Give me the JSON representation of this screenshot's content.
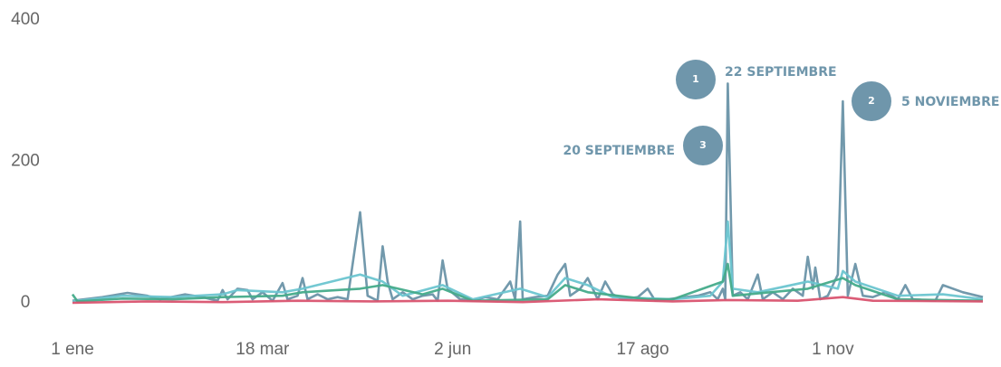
{
  "chart_data": {
    "type": "line",
    "xlim": [
      0,
      364
    ],
    "xticks": [
      {
        "value": 0,
        "label": "1 ene"
      },
      {
        "value": 76,
        "label": "18 mar"
      },
      {
        "value": 152,
        "label": "2 jun"
      },
      {
        "value": 228,
        "label": "17 ago"
      },
      {
        "value": 304,
        "label": "1 nov"
      }
    ],
    "ylim": [
      0,
      400
    ],
    "yticks": [
      0,
      200,
      400
    ],
    "grid": false,
    "series": [
      {
        "color": "#6a93a8",
        "x": [
          0,
          12,
          22,
          30,
          35,
          45,
          52,
          58,
          60,
          62,
          66,
          70,
          72,
          76,
          80,
          84,
          86,
          90,
          92,
          94,
          98,
          102,
          106,
          110,
          115,
          118,
          122,
          124,
          126,
          128,
          132,
          136,
          140,
          144,
          146,
          148,
          150,
          155,
          160,
          165,
          170,
          175,
          177,
          179,
          180,
          185,
          190,
          194,
          197,
          199,
          203,
          206,
          210,
          213,
          216,
          220,
          226,
          230,
          233,
          238,
          245,
          250,
          255,
          258,
          260,
          261,
          262,
          264,
          267,
          270,
          274,
          276,
          280,
          284,
          288,
          292,
          294,
          296,
          297,
          299,
          302,
          306,
          308,
          310,
          313,
          316,
          320,
          325,
          330,
          333,
          336,
          345,
          348,
          356,
          364
        ],
        "values": [
          3,
          8,
          14,
          10,
          5,
          12,
          8,
          3,
          18,
          5,
          20,
          18,
          5,
          15,
          3,
          28,
          5,
          10,
          35,
          5,
          12,
          5,
          8,
          5,
          128,
          10,
          3,
          80,
          30,
          5,
          15,
          5,
          10,
          12,
          3,
          60,
          20,
          5,
          3,
          8,
          5,
          30,
          5,
          115,
          5,
          8,
          10,
          40,
          55,
          10,
          20,
          35,
          5,
          30,
          12,
          5,
          8,
          20,
          3,
          5,
          8,
          10,
          15,
          5,
          20,
          5,
          310,
          10,
          15,
          5,
          40,
          5,
          15,
          5,
          20,
          10,
          65,
          20,
          50,
          5,
          10,
          40,
          285,
          10,
          55,
          10,
          8,
          15,
          5,
          25,
          5,
          3,
          25,
          15,
          8
        ]
      },
      {
        "color": "#6cc5d0",
        "x": [
          0,
          20,
          40,
          60,
          66,
          84,
          92,
          115,
          124,
          132,
          148,
          160,
          179,
          190,
          197,
          206,
          216,
          240,
          255,
          260,
          262,
          264,
          274,
          294,
          306,
          308,
          313,
          330,
          348,
          364
        ],
        "values": [
          2,
          10,
          8,
          12,
          18,
          15,
          20,
          40,
          30,
          10,
          25,
          5,
          20,
          8,
          35,
          25,
          8,
          5,
          10,
          30,
          115,
          20,
          15,
          30,
          20,
          45,
          30,
          10,
          12,
          5
        ]
      },
      {
        "color": "#45ab8a",
        "x": [
          0,
          2,
          20,
          40,
          60,
          84,
          92,
          115,
          124,
          140,
          148,
          160,
          190,
          197,
          206,
          230,
          240,
          260,
          262,
          264,
          294,
          308,
          313,
          330,
          364
        ],
        "values": [
          12,
          2,
          6,
          5,
          8,
          10,
          15,
          20,
          25,
          12,
          20,
          3,
          5,
          25,
          15,
          5,
          5,
          30,
          55,
          10,
          20,
          35,
          25,
          5,
          3
        ]
      },
      {
        "color": "#d9536f",
        "x": [
          0,
          30,
          60,
          90,
          120,
          150,
          180,
          210,
          240,
          262,
          290,
          308,
          320,
          364
        ],
        "values": [
          0,
          2,
          1,
          3,
          2,
          3,
          1,
          5,
          2,
          4,
          3,
          8,
          3,
          2
        ]
      }
    ],
    "annotations": [
      {
        "marker": "1",
        "text": "22 SEPTIEMBRE"
      },
      {
        "marker": "2",
        "text": "5 NOVIEMBRE"
      },
      {
        "marker": "3",
        "text": "20 SEPTIEMBRE"
      }
    ]
  }
}
